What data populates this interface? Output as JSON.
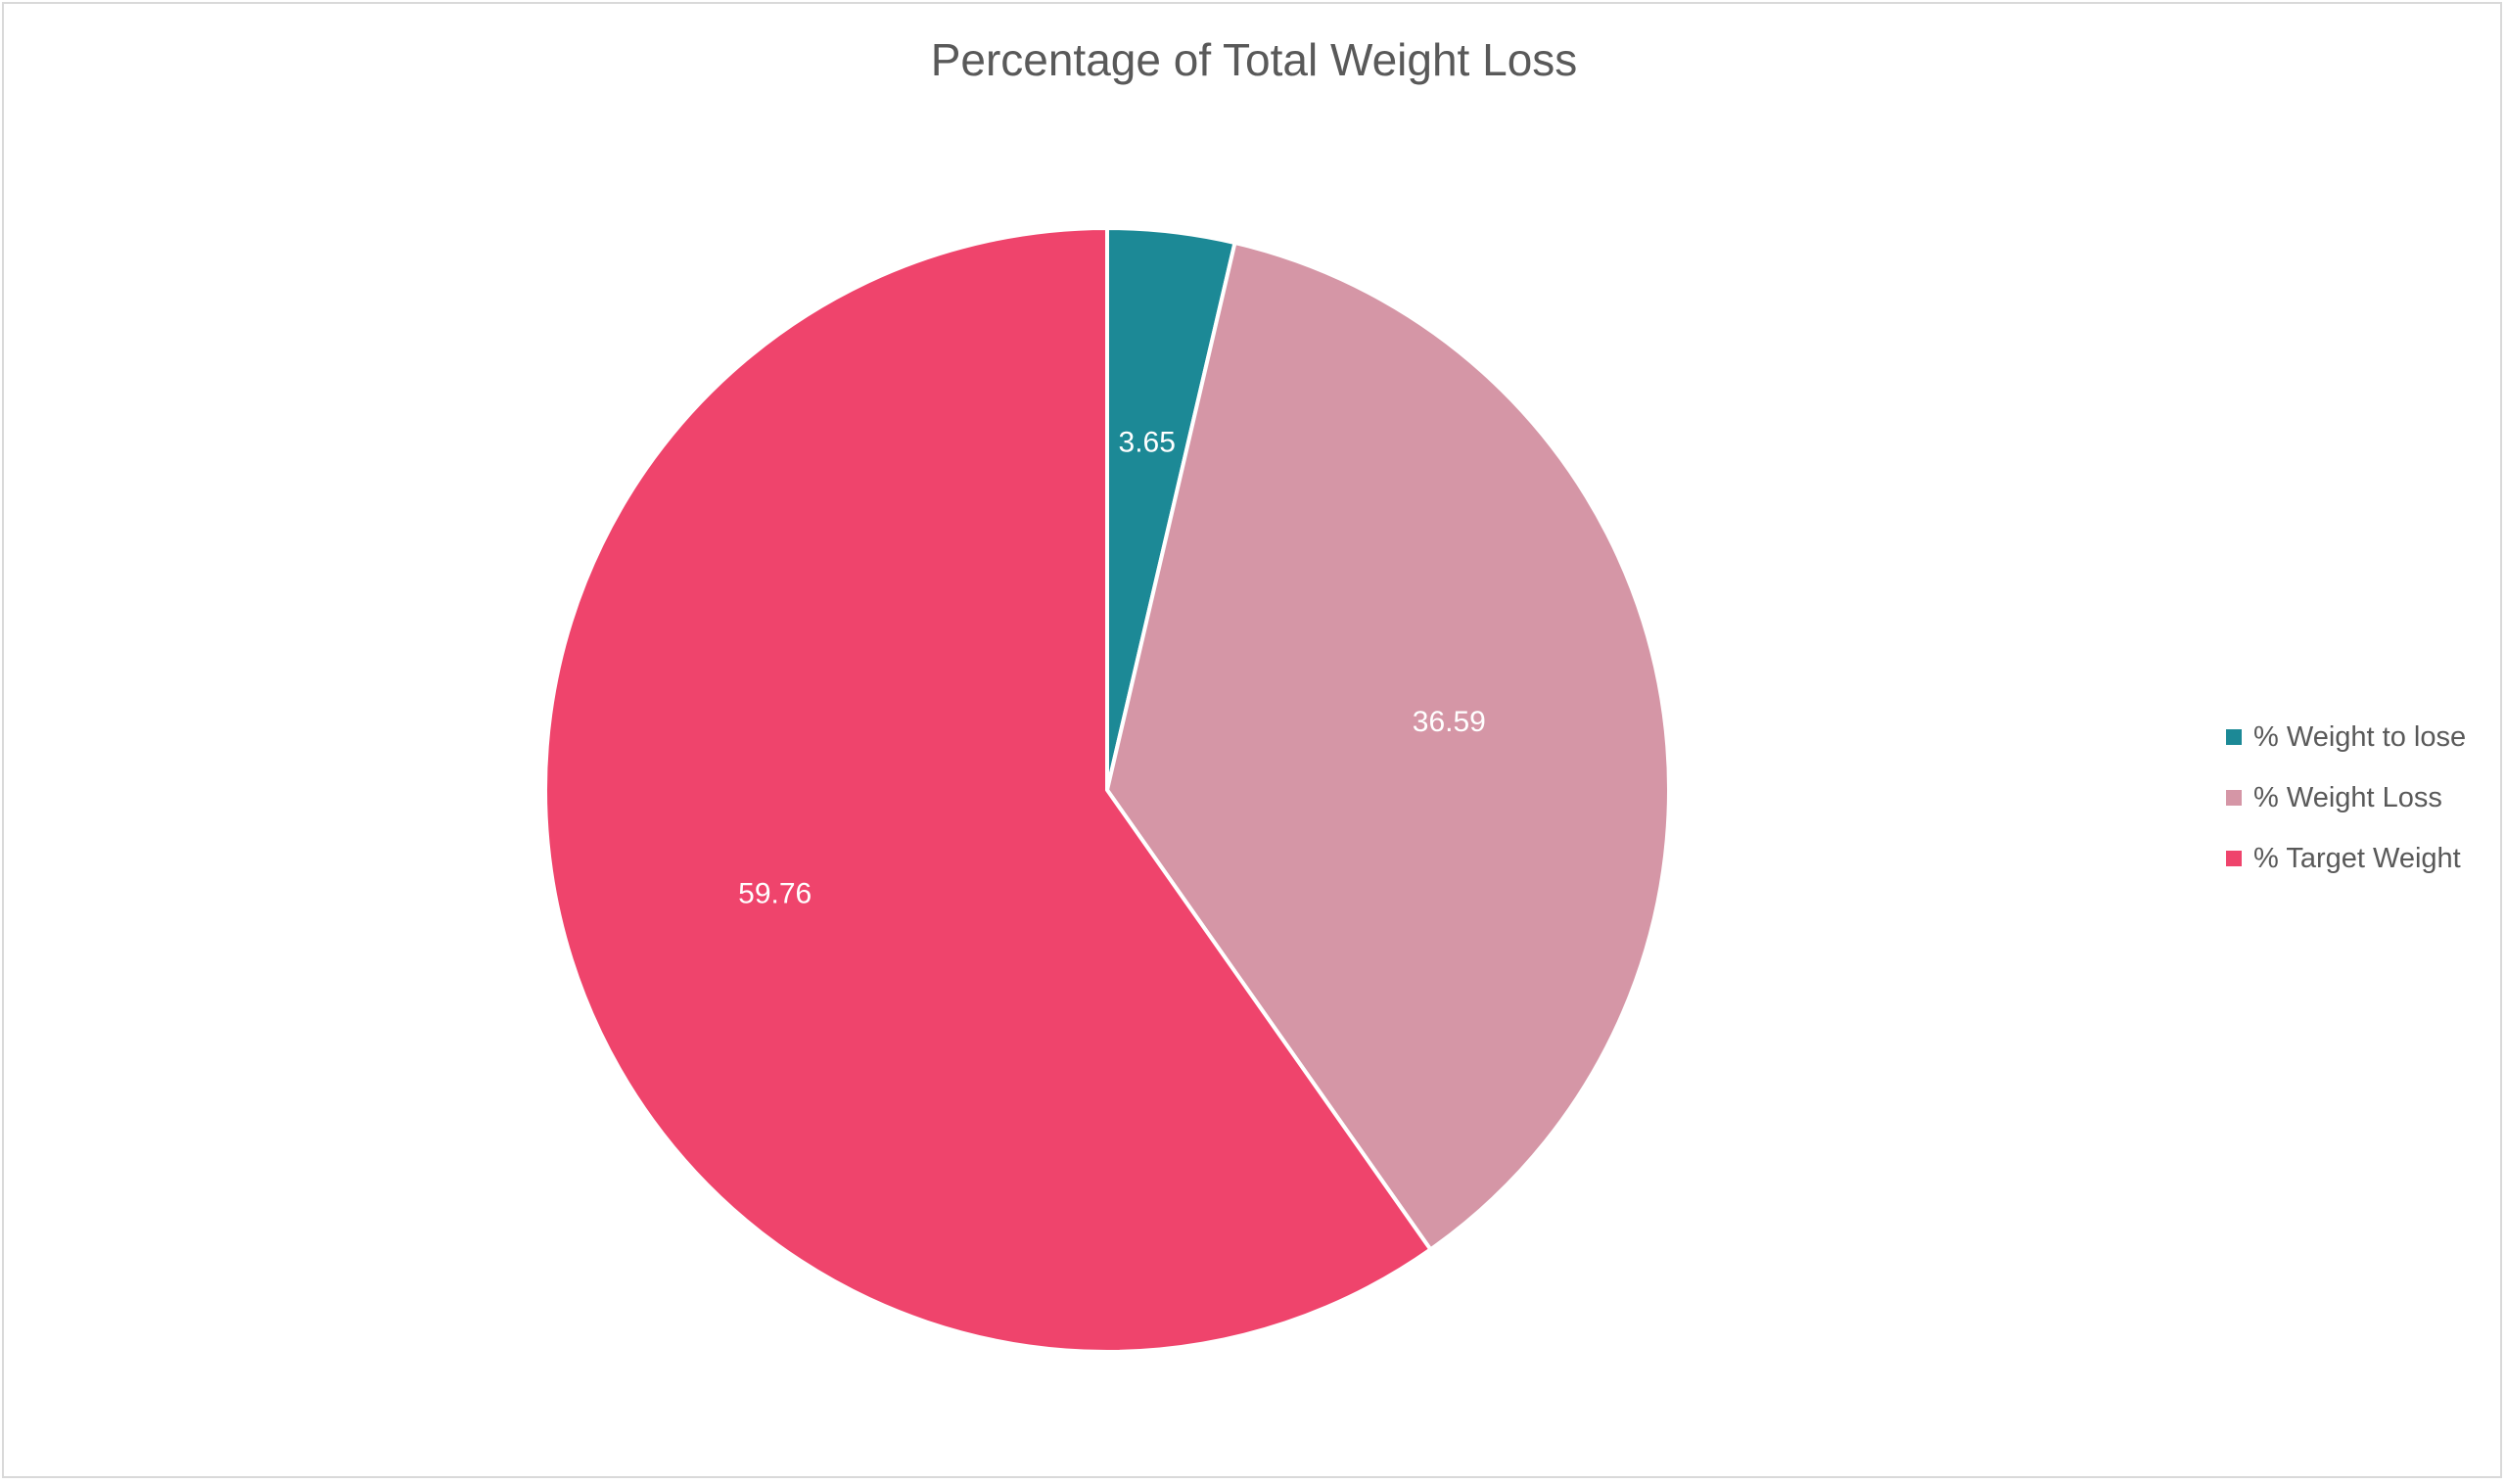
{
  "chart_data": {
    "type": "pie",
    "title": "Percentage of Total Weight Loss",
    "slices": [
      {
        "label": "% Weight to lose",
        "value": 3.65,
        "display": "3.65",
        "color": "#1c8996"
      },
      {
        "label": "% Weight Loss",
        "value": 36.59,
        "display": "36.59",
        "color": "#d596a6"
      },
      {
        "label": "% Target Weight",
        "value": 59.76,
        "display": "59.76",
        "color": "#ef446c"
      }
    ],
    "start_angle_deg": 0,
    "direction": "clockwise",
    "legend_position": "right",
    "data_label_color": "#ffffff"
  }
}
